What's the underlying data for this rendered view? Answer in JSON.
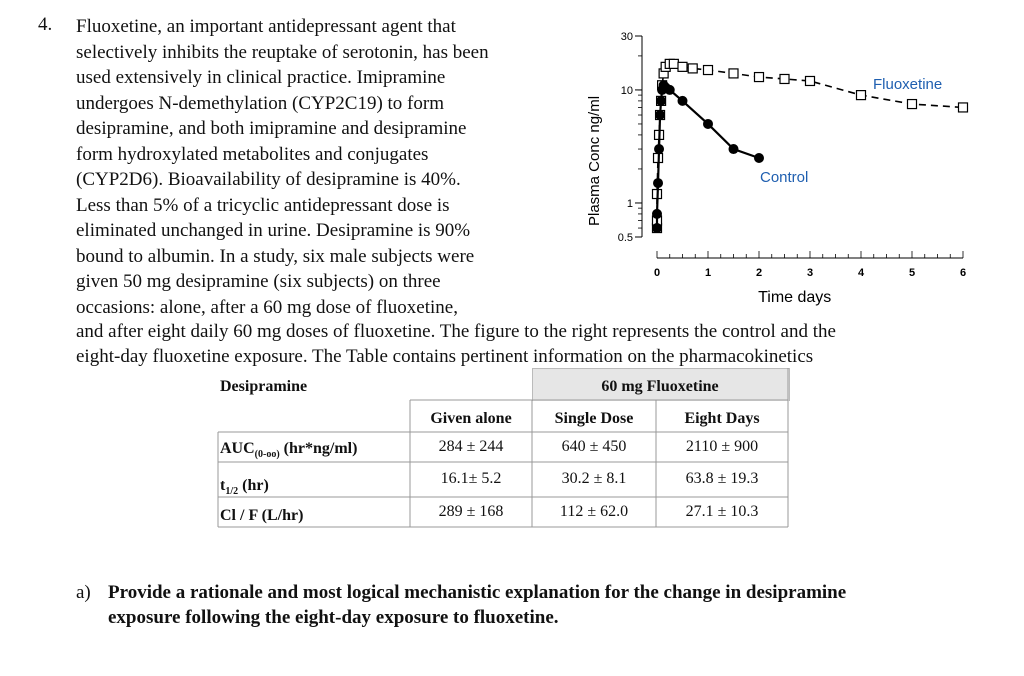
{
  "problem": {
    "number": "4.",
    "lines": [
      "Fluoxetine, an important antidepressant agent that",
      "selectively inhibits the reuptake of serotonin, has been",
      "used extensively in clinical practice.  Imipramine",
      "undergoes N-demethylation (CYP2C19) to form",
      "desipramine, and both imipramine and desipramine",
      "form hydroxylated metabolites and conjugates",
      "(CYP2D6). Bioavailability of desipramine is 40%.",
      "Less than 5% of a tricyclic antidepressant dose is",
      "eliminated unchanged in urine. Desipramine is 90%",
      "bound to albumin.  In a study, six male subjects were",
      "given 50 mg desipramine (six subjects) on three",
      "occasions: alone, after a 60 mg dose of fluoxetine,"
    ],
    "full_lines": [
      "and after eight daily 60 mg doses of fluoxetine.  The figure to the right represents the control and the",
      "eight-day fluoxetine exposure.   The Table contains pertinent information on the pharmacokinetics"
    ]
  },
  "chart_data": {
    "type": "scatter",
    "ylabel": "Plasma Conc  ng/ml",
    "xlabel": "Time  days",
    "y_scale": "log",
    "ylim": [
      0.5,
      30
    ],
    "xlim": [
      0,
      6
    ],
    "y_ticks": [
      "30",
      "10",
      "1",
      "0.5"
    ],
    "y_tick_values": [
      30,
      10,
      1,
      0.5
    ],
    "x_ticks": [
      "0",
      "1",
      "2",
      "3",
      "4",
      "5",
      "6"
    ],
    "x_tick_values": [
      0,
      1,
      2,
      3,
      4,
      5,
      6
    ],
    "series": [
      {
        "name": "Fluoxetine",
        "marker": "open-square",
        "line": "dashed",
        "color": "#1f5fb0",
        "x": [
          0,
          0,
          0,
          0.02,
          0.04,
          0.06,
          0.08,
          0.1,
          0.13,
          0.17,
          0.25,
          0.33,
          0.5,
          0.7,
          1.0,
          1.5,
          2.0,
          2.5,
          3.0,
          4.0,
          5.0,
          6.0
        ],
        "y": [
          0.6,
          0.7,
          1.2,
          2.5,
          4,
          6,
          8,
          11,
          14,
          16,
          17,
          17,
          16,
          15.5,
          15,
          14,
          13,
          12.5,
          12,
          9,
          7.5,
          7
        ]
      },
      {
        "name": "Control",
        "marker": "filled-circle",
        "line": "solid",
        "color": "#000000",
        "x": [
          0,
          0,
          0.02,
          0.04,
          0.06,
          0.08,
          0.1,
          0.13,
          0.17,
          0.25,
          0.5,
          1.0,
          1.5,
          2.0
        ],
        "y": [
          0.6,
          0.8,
          1.5,
          3,
          6,
          8,
          10,
          11,
          10.5,
          10,
          8,
          5,
          3,
          2.5
        ]
      }
    ]
  },
  "table": {
    "title_left": "Desipramine",
    "title_fluo": "60 mg Fluoxetine",
    "headers": [
      "Given alone",
      "Single Dose",
      "Eight Days"
    ],
    "rows": [
      {
        "label_main": "AUC",
        "label_sub": "(0-oo)",
        "label_rest": " (hr*ng/ml)",
        "values": [
          "284 ± 244",
          "640 ± 450",
          "2110 ± 900"
        ]
      },
      {
        "label_main": "t",
        "label_sub": "1/2",
        "label_rest": " (hr)",
        "values": [
          "16.1± 5.2",
          "30.2 ± 8.1",
          "63.8 ± 19.3"
        ]
      },
      {
        "label_main": "Cl / F (L/hr)",
        "label_sub": "",
        "label_rest": "",
        "values": [
          "289 ± 168",
          "112 ± 62.0",
          "27.1 ± 10.3"
        ]
      }
    ]
  },
  "question": {
    "letter": "a)",
    "lines": [
      "Provide a rationale and most logical mechanistic explanation for the change in desipramine",
      "exposure following the eight-day exposure to fluoxetine."
    ]
  }
}
